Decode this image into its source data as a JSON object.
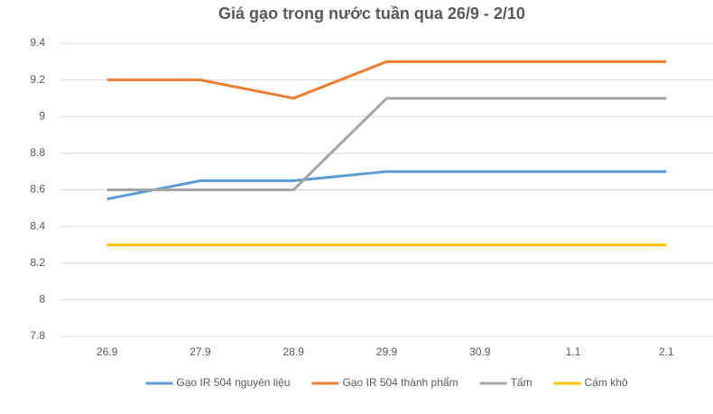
{
  "chart_data": {
    "type": "line",
    "title": "Giá gạo trong nước tuần qua 26/9 - 2/10",
    "categories": [
      "26.9",
      "27.9",
      "28.9",
      "29.9",
      "30.9",
      "1.1",
      "2.1"
    ],
    "series": [
      {
        "name": "Gạo IR 504 nguyên liệu",
        "color": "#5b9bd5",
        "values": [
          8.55,
          8.65,
          8.65,
          8.7,
          8.7,
          8.7,
          8.7
        ]
      },
      {
        "name": "Gạo IR 504 thành phẩm",
        "color": "#ed7d31",
        "values": [
          9.2,
          9.2,
          9.1,
          9.3,
          9.3,
          9.3,
          9.3
        ]
      },
      {
        "name": "Tấm",
        "color": "#a5a5a5",
        "values": [
          8.6,
          8.6,
          8.6,
          9.1,
          9.1,
          9.1,
          9.1
        ]
      },
      {
        "name": "Cám khô",
        "color": "#ffc000",
        "values": [
          8.3,
          8.3,
          8.3,
          8.3,
          8.3,
          8.3,
          8.3
        ]
      }
    ],
    "ylim": [
      7.8,
      9.4
    ],
    "yticks": [
      7.8,
      8,
      8.2,
      8.4,
      8.6,
      8.8,
      9,
      9.2,
      9.4
    ],
    "grid": true,
    "legend": "bottom"
  }
}
